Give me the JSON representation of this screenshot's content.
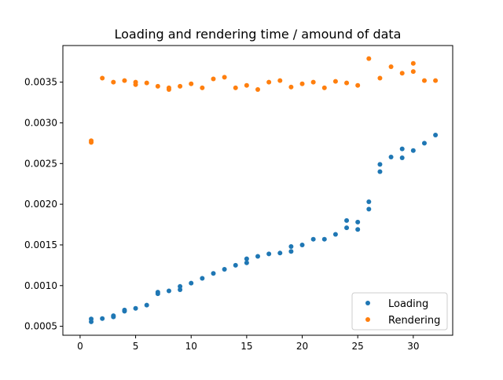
{
  "chart_data": {
    "type": "scatter",
    "title": "Loading and rendering time / amound of data",
    "xlabel": "",
    "ylabel": "",
    "xlim": [
      -1.55,
      33.55
    ],
    "ylim": [
      0.00039,
      0.00395
    ],
    "xticks": [
      0,
      5,
      10,
      15,
      20,
      25,
      30
    ],
    "xtick_labels": [
      "0",
      "5",
      "10",
      "15",
      "20",
      "25",
      "30"
    ],
    "yticks": [
      0.0005,
      0.001,
      0.0015,
      0.002,
      0.0025,
      0.003,
      0.0035
    ],
    "ytick_labels": [
      "0.0005",
      "0.0010",
      "0.0015",
      "0.0020",
      "0.0025",
      "0.0030",
      "0.0035"
    ],
    "grid": false,
    "legend_position": "lower-right",
    "series": [
      {
        "name": "Loading",
        "color": "#1f77b4",
        "points": [
          [
            1,
            0.00059
          ],
          [
            1,
            0.000555
          ],
          [
            2,
            0.000595
          ],
          [
            3,
            0.000615
          ],
          [
            3,
            0.00063
          ],
          [
            4,
            0.000685
          ],
          [
            4,
            0.0007
          ],
          [
            5,
            0.00072
          ],
          [
            6,
            0.00076
          ],
          [
            7,
            0.0009
          ],
          [
            7,
            0.00092
          ],
          [
            8,
            0.000935
          ],
          [
            9,
            0.00095
          ],
          [
            9,
            0.00099
          ],
          [
            10,
            0.00103
          ],
          [
            11,
            0.00109
          ],
          [
            12,
            0.00115
          ],
          [
            13,
            0.0012
          ],
          [
            14,
            0.00125
          ],
          [
            15,
            0.00128
          ],
          [
            15,
            0.00133
          ],
          [
            16,
            0.00136
          ],
          [
            17,
            0.00139
          ],
          [
            18,
            0.0014
          ],
          [
            19,
            0.00142
          ],
          [
            19,
            0.00148
          ],
          [
            20,
            0.0015
          ],
          [
            21,
            0.00157
          ],
          [
            22,
            0.00157
          ],
          [
            23,
            0.00163
          ],
          [
            24,
            0.00171
          ],
          [
            24,
            0.0018
          ],
          [
            25,
            0.00169
          ],
          [
            25,
            0.00178
          ],
          [
            26,
            0.00194
          ],
          [
            26,
            0.00203
          ],
          [
            27,
            0.0024
          ],
          [
            27,
            0.00249
          ],
          [
            28,
            0.00258
          ],
          [
            29,
            0.00257
          ],
          [
            29,
            0.00268
          ],
          [
            30,
            0.00266
          ],
          [
            31,
            0.00275
          ],
          [
            32,
            0.00285
          ]
        ]
      },
      {
        "name": "Rendering",
        "color": "#ff7f0e",
        "points": [
          [
            1,
            0.00278
          ],
          [
            1,
            0.00276
          ],
          [
            2,
            0.00355
          ],
          [
            3,
            0.0035
          ],
          [
            4,
            0.00352
          ],
          [
            5,
            0.00347
          ],
          [
            5,
            0.0035
          ],
          [
            6,
            0.00349
          ],
          [
            7,
            0.00345
          ],
          [
            8,
            0.00341
          ],
          [
            8,
            0.00343
          ],
          [
            9,
            0.00345
          ],
          [
            10,
            0.00348
          ],
          [
            11,
            0.00343
          ],
          [
            12,
            0.00354
          ],
          [
            13,
            0.00356
          ],
          [
            14,
            0.00343
          ],
          [
            15,
            0.00346
          ],
          [
            16,
            0.00341
          ],
          [
            17,
            0.0035
          ],
          [
            18,
            0.00352
          ],
          [
            19,
            0.00344
          ],
          [
            20,
            0.00348
          ],
          [
            21,
            0.0035
          ],
          [
            22,
            0.00343
          ],
          [
            23,
            0.00351
          ],
          [
            24,
            0.00349
          ],
          [
            25,
            0.00346
          ],
          [
            26,
            0.00379
          ],
          [
            27,
            0.00355
          ],
          [
            28,
            0.00369
          ],
          [
            29,
            0.00361
          ],
          [
            30,
            0.00363
          ],
          [
            30,
            0.00373
          ],
          [
            31,
            0.00352
          ],
          [
            32,
            0.00352
          ]
        ]
      }
    ]
  }
}
